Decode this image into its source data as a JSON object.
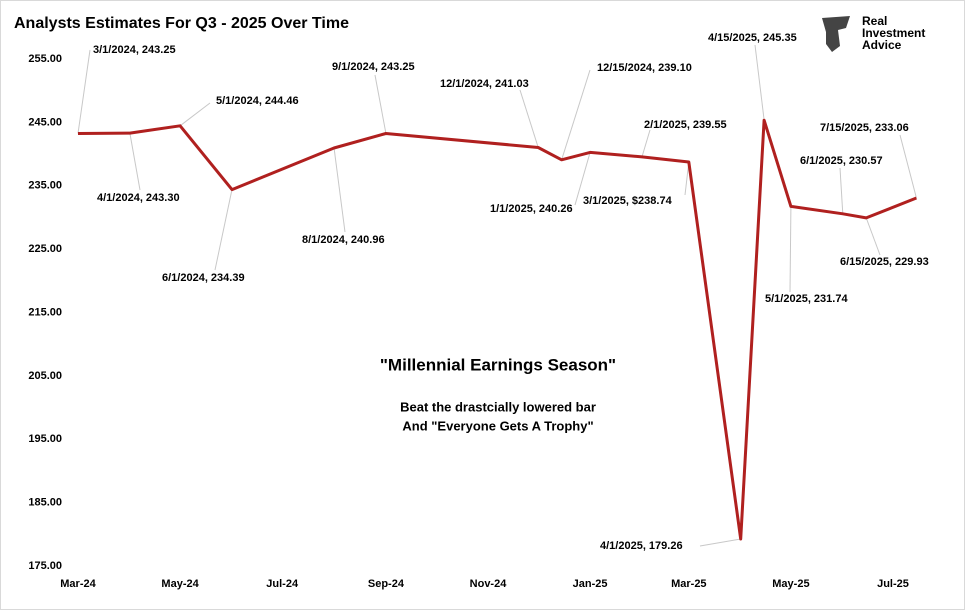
{
  "chart_data": {
    "type": "line",
    "title": "Analysts Estimates For Q3 - 2025 Over Time",
    "logo": [
      "Real",
      "Investment",
      "Advice"
    ],
    "annotations": [
      "\"Millennial Earnings Season\"",
      "Beat the drastcially lowered bar",
      "And \"Everyone Gets A Trophy\""
    ],
    "color": "#b0201f",
    "x": [
      "3/1/2024",
      "4/1/2024",
      "5/1/2024",
      "6/1/2024",
      "8/1/2024",
      "9/1/2024",
      "12/1/2024",
      "12/15/2024",
      "1/1/2025",
      "2/1/2025",
      "3/1/2025",
      "4/1/2025",
      "4/15/2025",
      "5/1/2025",
      "6/1/2025",
      "6/15/2025",
      "7/15/2025"
    ],
    "values": [
      243.25,
      243.3,
      244.46,
      234.39,
      240.96,
      243.25,
      241.03,
      239.1,
      240.26,
      239.55,
      238.74,
      179.26,
      245.35,
      231.74,
      230.57,
      229.93,
      233.06
    ],
    "value_labels": [
      "3/1/2024,  243.25",
      "4/1/2024,  243.30",
      "5/1/2024,  244.46",
      "6/1/2024,  234.39",
      "8/1/2024,  240.96",
      "9/1/2024,  243.25",
      "12/1/2024,  241.03",
      "12/15/2024,  239.10",
      "1/1/2025,  240.26",
      "2/1/2025,  239.55",
      "3/1/2025, $238.74",
      "4/1/2025,  179.26",
      "4/15/2025,  245.35",
      "5/1/2025,  231.74",
      "6/1/2025,  230.57",
      "6/15/2025,  229.93",
      "7/15/2025,  233.06"
    ],
    "xlim": [
      "3/1/2024",
      "7/1/2025"
    ],
    "xticks": [
      {
        "value": "3/1/2024",
        "label": "Mar-24"
      },
      {
        "value": "5/1/2024",
        "label": "May-24"
      },
      {
        "value": "7/1/2024",
        "label": "Jul-24"
      },
      {
        "value": "9/1/2024",
        "label": "Sep-24"
      },
      {
        "value": "11/1/2024",
        "label": "Nov-24"
      },
      {
        "value": "1/1/2025",
        "label": "Jan-25"
      },
      {
        "value": "3/1/2025",
        "label": "Mar-25"
      },
      {
        "value": "5/1/2025",
        "label": "May-25"
      },
      {
        "value": "7/1/2025",
        "label": "Jul-25"
      }
    ],
    "ylim": [
      175,
      255
    ],
    "yticks": [
      {
        "value": 175,
        "label": "175.00"
      },
      {
        "value": 185,
        "label": "185.00"
      },
      {
        "value": 195,
        "label": "195.00"
      },
      {
        "value": 205,
        "label": "205.00"
      },
      {
        "value": 215,
        "label": "215.00"
      },
      {
        "value": 225,
        "label": "225.00"
      },
      {
        "value": 235,
        "label": "235.00"
      },
      {
        "value": 245,
        "label": "245.00"
      },
      {
        "value": 255,
        "label": "255.00"
      }
    ],
    "grid": false
  }
}
